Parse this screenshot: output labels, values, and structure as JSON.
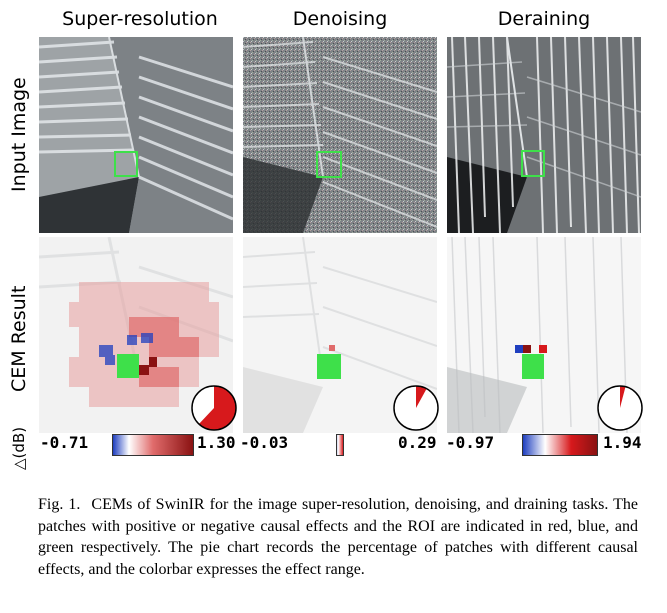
{
  "columns": [
    "Super-resolution",
    "Denoising",
    "Deraining"
  ],
  "rows": [
    "Input Image",
    "CEM Result"
  ],
  "delta_label": "△(dB)",
  "colorbars": [
    {
      "min": "-0.71",
      "max": "1.30"
    },
    {
      "min": "-0.03",
      "max": "0.29"
    },
    {
      "min": "-0.97",
      "max": "1.94"
    }
  ],
  "pie_fractions": [
    {
      "red": 0.62,
      "blue": 0.0,
      "white": 0.38
    },
    {
      "red": 0.08,
      "blue": 0.0,
      "white": 0.92
    },
    {
      "red": 0.04,
      "blue": 0.01,
      "white": 0.95
    }
  ],
  "colors": {
    "positive": "#d7191c",
    "negative": "#1f3fbf",
    "roi": "#3ee04a"
  },
  "caption": {
    "prefix": "Fig. 1.",
    "text": "CEMs of SwinIR for the image super-resolution, denoising, and draining tasks. The patches with positive or negative causal effects and the ROI are indicated in red, blue, and green respectively. The pie chart records the percentage of patches with different causal effects, and the colorbar expresses the effect range."
  }
}
